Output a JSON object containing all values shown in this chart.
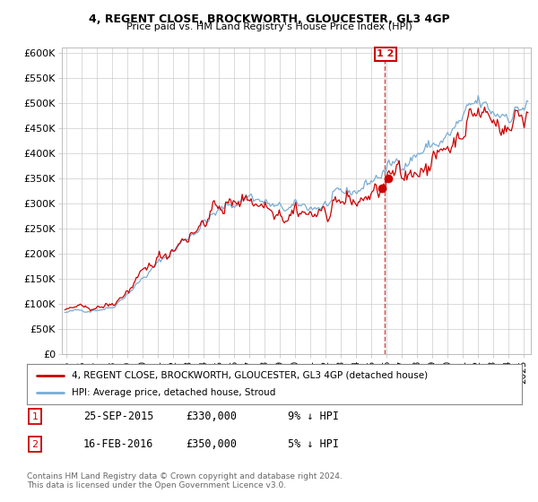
{
  "title": "4, REGENT CLOSE, BROCKWORTH, GLOUCESTER, GL3 4GP",
  "subtitle": "Price paid vs. HM Land Registry's House Price Index (HPI)",
  "ylabel_ticks": [
    "£0",
    "£50K",
    "£100K",
    "£150K",
    "£200K",
    "£250K",
    "£300K",
    "£350K",
    "£400K",
    "£450K",
    "£500K",
    "£550K",
    "£600K"
  ],
  "ytick_values": [
    0,
    50000,
    100000,
    150000,
    200000,
    250000,
    300000,
    350000,
    400000,
    450000,
    500000,
    550000,
    600000
  ],
  "ylim": [
    0,
    610000
  ],
  "xlim_start": 1994.7,
  "xlim_end": 2025.5,
  "line1_color": "#cc0000",
  "line2_color": "#7aadd4",
  "legend_line1": "4, REGENT CLOSE, BROCKWORTH, GLOUCESTER, GL3 4GP (detached house)",
  "legend_line2": "HPI: Average price, detached house, Stroud",
  "transaction1_label": "1",
  "transaction1_date": "25-SEP-2015",
  "transaction1_price": "£330,000",
  "transaction1_hpi": "9% ↓ HPI",
  "transaction2_label": "2",
  "transaction2_date": "16-FEB-2016",
  "transaction2_price": "£350,000",
  "transaction2_hpi": "5% ↓ HPI",
  "footer_line1": "Contains HM Land Registry data © Crown copyright and database right 2024.",
  "footer_line2": "This data is licensed under the Open Government Licence v3.0.",
  "background_color": "#ffffff",
  "plot_bg_color": "#ffffff",
  "grid_color": "#cccccc",
  "t1_x": 2015.73,
  "t1_y": 330000,
  "t2_x": 2016.12,
  "t2_y": 350000,
  "vline_x": 2015.9
}
